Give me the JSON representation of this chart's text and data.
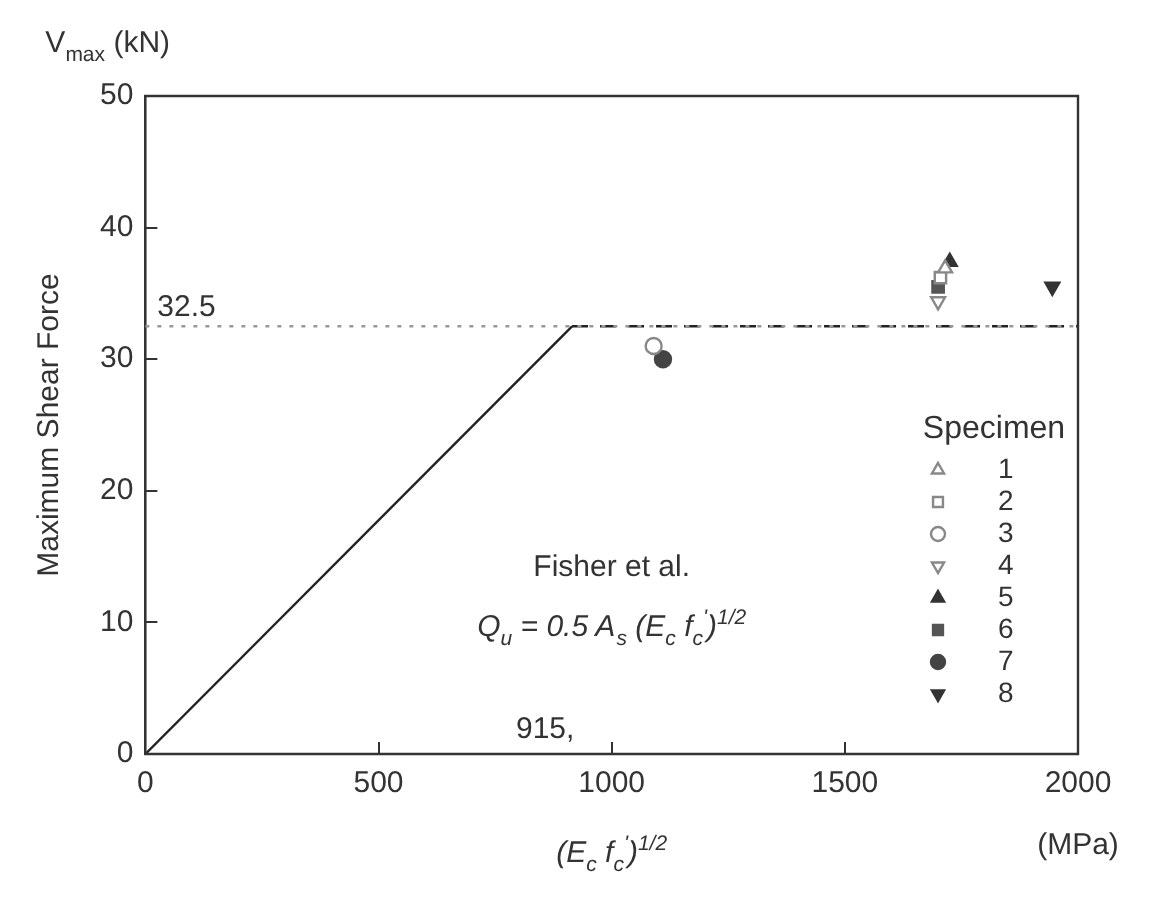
{
  "chart_data": {
    "type": "scatter",
    "xlabel": "(E$_{c}$ f$_{c}$$^{'}$)$^{1/2}$",
    "ylabel": "Maximum Shear Force",
    "legend_title": "Specimen",
    "legend": "bottom right",
    "grid": false,
    "xlim": [
      0,
      2000
    ],
    "xticks": [
      0,
      500,
      1000,
      1500,
      2000
    ],
    "ylim": [
      0,
      50
    ],
    "yticks": [
      0,
      10,
      20,
      30,
      40,
      50
    ],
    "ref_lines": [
      {
        "axis": "y",
        "value": 32.5,
        "label": "32.5",
        "line_style": "dotted",
        "color": "#999999"
      }
    ],
    "annotations": [
      "V$_{max}$ (kN)",
      "(MPa)",
      "Fisher et al.",
      "Q$_{u}$ = 0.5 A$_{s}$ (E$_{c}$ f$_{c}$$^{'}$)$^{1/2}$",
      "915,"
    ],
    "series": [
      {
        "type": "line",
        "color": "#222222",
        "line_style": "solid",
        "marker": "none",
        "x": [
          0,
          915
        ],
        "values": [
          0,
          32.5
        ]
      },
      {
        "type": "line",
        "color": "#222222",
        "line_style": "dashed",
        "marker": "none",
        "x": [
          915,
          2000
        ],
        "values": [
          32.5,
          32.5
        ]
      },
      {
        "name": "1",
        "color": "#888888",
        "marker": "triangle",
        "x": [
          1715
        ],
        "values": [
          36.9
        ]
      },
      {
        "name": "2",
        "color": "#888888",
        "marker": "square",
        "x": [
          1705
        ],
        "values": [
          36.2
        ]
      },
      {
        "name": "3",
        "color": "#888888",
        "marker": "circle",
        "x": [
          1090
        ],
        "values": [
          31
        ]
      },
      {
        "name": "4",
        "color": "#888888",
        "marker": "triangle-down",
        "x": [
          1700
        ],
        "values": [
          34.4
        ]
      },
      {
        "name": "5",
        "color": "#333333",
        "marker": "triangle",
        "x": [
          1725
        ],
        "values": [
          37.4
        ]
      },
      {
        "name": "6",
        "color": "#555555",
        "marker": "square",
        "x": [
          1700
        ],
        "values": [
          35.5
        ]
      },
      {
        "name": "7",
        "color": "#444444",
        "marker": "circle",
        "x": [
          1110
        ],
        "values": [
          30
        ]
      },
      {
        "name": "8",
        "color": "#333333",
        "marker": "triangle-down",
        "x": [
          1945
        ],
        "values": [
          35.5
        ]
      }
    ]
  }
}
